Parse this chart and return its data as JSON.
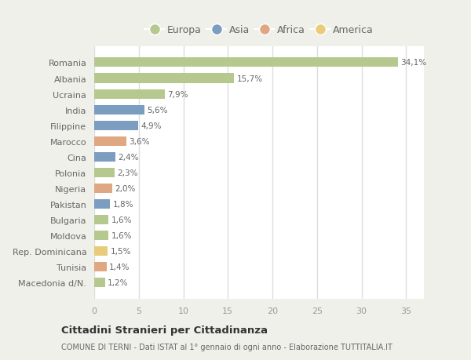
{
  "countries": [
    "Romania",
    "Albania",
    "Ucraina",
    "India",
    "Filippine",
    "Marocco",
    "Cina",
    "Polonia",
    "Nigeria",
    "Pakistan",
    "Bulgaria",
    "Moldova",
    "Rep. Dominicana",
    "Tunisia",
    "Macedonia d/N."
  ],
  "values": [
    34.1,
    15.7,
    7.9,
    5.6,
    4.9,
    3.6,
    2.4,
    2.3,
    2.0,
    1.8,
    1.6,
    1.6,
    1.5,
    1.4,
    1.2
  ],
  "labels": [
    "34,1%",
    "15,7%",
    "7,9%",
    "5,6%",
    "4,9%",
    "3,6%",
    "2,4%",
    "2,3%",
    "2,0%",
    "1,8%",
    "1,6%",
    "1,6%",
    "1,5%",
    "1,4%",
    "1,2%"
  ],
  "continents": [
    "Europa",
    "Europa",
    "Europa",
    "Asia",
    "Asia",
    "Africa",
    "Asia",
    "Europa",
    "Africa",
    "Asia",
    "Europa",
    "Europa",
    "America",
    "Africa",
    "Europa"
  ],
  "colors": {
    "Europa": "#b5c98e",
    "Asia": "#7b9dc0",
    "Africa": "#e0a882",
    "America": "#e8cc7a"
  },
  "legend_order": [
    "Europa",
    "Asia",
    "Africa",
    "America"
  ],
  "title": "Cittadini Stranieri per Cittadinanza",
  "subtitle": "COMUNE DI TERNI - Dati ISTAT al 1° gennaio di ogni anno - Elaborazione TUTTITALIA.IT",
  "xlim": [
    0,
    37
  ],
  "xticks": [
    0,
    5,
    10,
    15,
    20,
    25,
    30,
    35
  ],
  "outer_bg": "#f0f0eb",
  "plot_bg": "#ffffff"
}
